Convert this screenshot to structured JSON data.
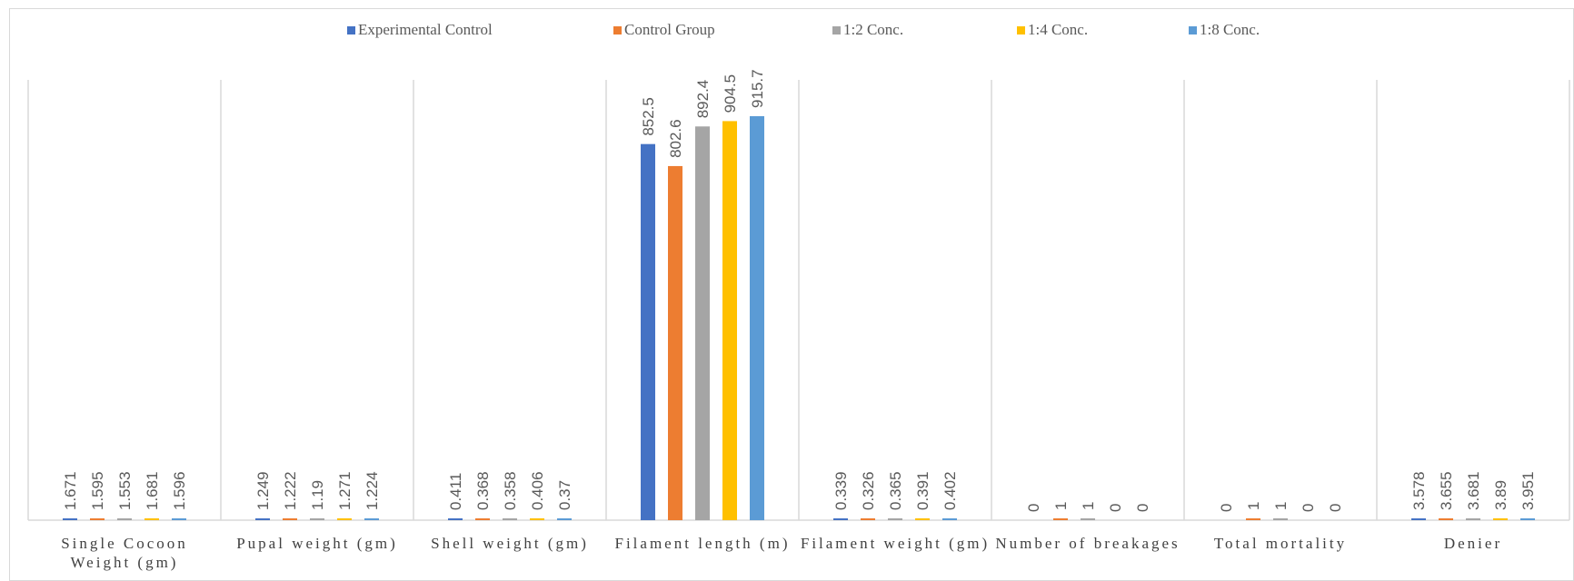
{
  "chart_data": {
    "type": "bar",
    "title": "",
    "xlabel": "",
    "ylabel": "",
    "grid": false,
    "legend_position": "top",
    "categories": [
      "Single Cocoon Weight (gm)",
      "Pupal weight (gm)",
      "Shell weight (gm)",
      "Filament length (m)",
      "Filament weight (gm)",
      "Number of breakages",
      "Total mortality",
      "Denier"
    ],
    "ylim": [
      0,
      1000
    ],
    "series": [
      {
        "name": "Experimental Control",
        "color": "#4472c4",
        "values": [
          1.671,
          1.249,
          0.411,
          852.5,
          0.339,
          0,
          0,
          3.578
        ]
      },
      {
        "name": "Control Group",
        "color": "#ed7d31",
        "values": [
          1.595,
          1.222,
          0.368,
          802.6,
          0.326,
          1,
          1,
          3.655
        ]
      },
      {
        "name": "1:2 Conc.",
        "color": "#a5a5a5",
        "values": [
          1.553,
          1.19,
          0.358,
          892.4,
          0.365,
          1,
          1,
          3.681
        ]
      },
      {
        "name": "1:4 Conc.",
        "color": "#ffc000",
        "values": [
          1.681,
          1.271,
          0.406,
          904.5,
          0.391,
          0,
          0,
          3.89
        ]
      },
      {
        "name": "1:8 Conc.",
        "color": "#5b9bd5",
        "values": [
          1.596,
          1.224,
          0.37,
          915.7,
          0.402,
          0,
          0,
          3.951
        ]
      }
    ]
  }
}
